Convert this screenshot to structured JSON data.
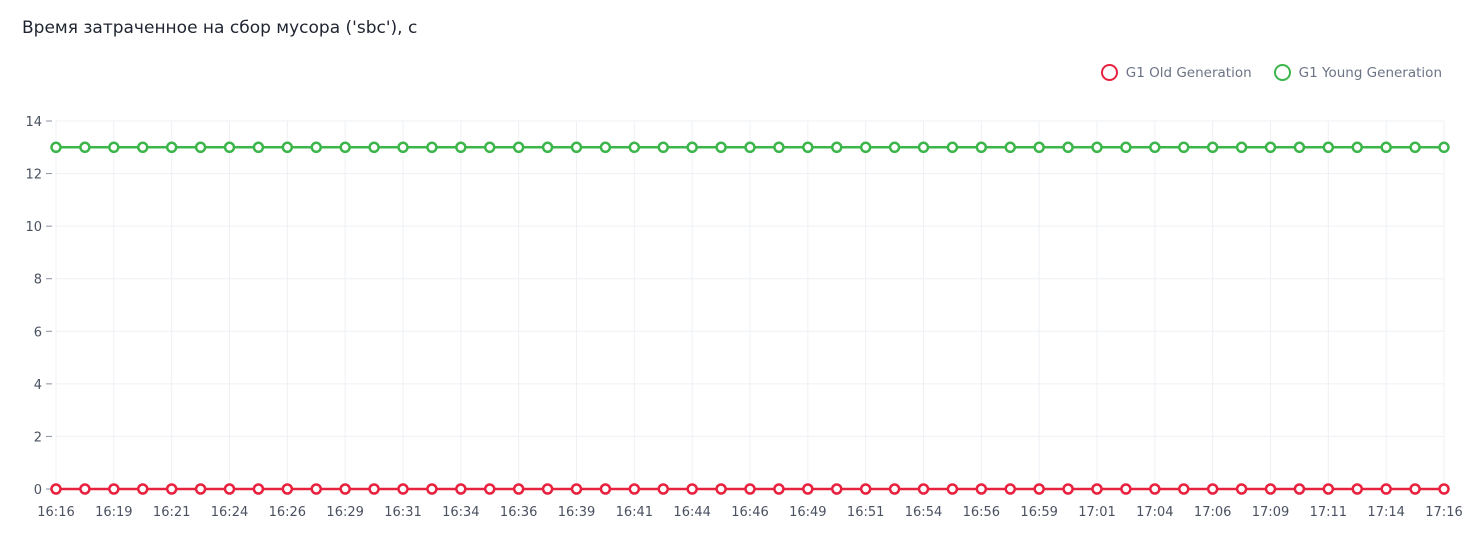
{
  "chart_data": {
    "type": "line",
    "title": "Время затраченное на сбор мусора ('sbc'), с",
    "xlabel": "",
    "ylabel": "",
    "ylim": [
      0,
      14
    ],
    "y_ticks": [
      "0",
      "2",
      "4",
      "6",
      "8",
      "10",
      "12",
      "14"
    ],
    "x_tick_labels": [
      "16:16",
      "16:19",
      "16:21",
      "16:24",
      "16:26",
      "16:29",
      "16:31",
      "16:34",
      "16:36",
      "16:39",
      "16:41",
      "16:44",
      "16:46",
      "16:49",
      "16:51",
      "16:54",
      "16:56",
      "16:59",
      "17:01",
      "17:04",
      "17:06",
      "17:09",
      "17:11",
      "17:14",
      "17:16"
    ],
    "points_count": 49,
    "grid": true,
    "legend_position": "top-right",
    "series": [
      {
        "name": "G1 Old Generation",
        "color": "#e8213f",
        "value_constant": 0
      },
      {
        "name": "G1 Young Generation",
        "color": "#3cb54a",
        "value_constant": 13
      }
    ]
  }
}
